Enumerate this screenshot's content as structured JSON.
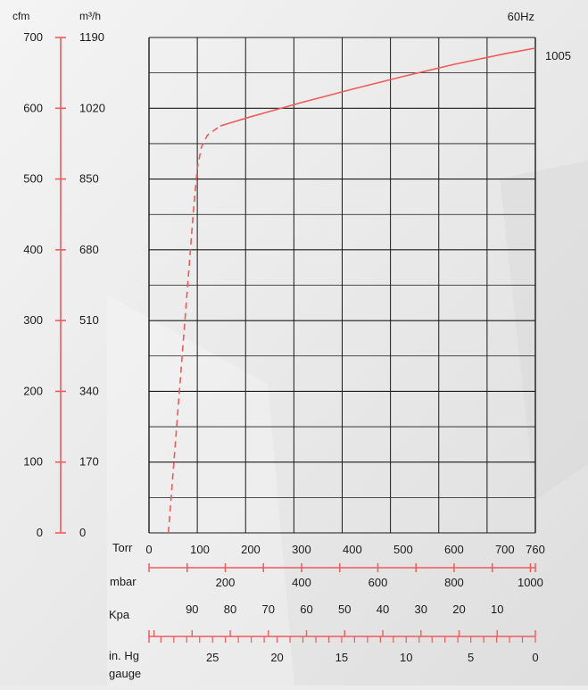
{
  "chart_data": {
    "type": "line",
    "frequency_label": "60Hz",
    "end_value_label": "1005",
    "colors": {
      "curve": "#f05a5a",
      "axis": "#f05a5a",
      "grid": "#1a1a1a",
      "text": "#1a1a1a"
    },
    "grid": true,
    "y_axes": [
      {
        "label": "cfm",
        "ticks": [
          0,
          100,
          200,
          300,
          400,
          500,
          600,
          700
        ],
        "range": [
          0,
          700
        ]
      },
      {
        "label": "m³/h",
        "ticks": [
          0,
          170,
          340,
          510,
          680,
          850,
          1020,
          1190
        ],
        "range": [
          0,
          1190
        ]
      }
    ],
    "x_axes": [
      {
        "label": "Torr",
        "ticks": [
          0,
          100,
          200,
          300,
          400,
          500,
          600,
          700,
          760
        ],
        "range": [
          0,
          760
        ]
      },
      {
        "label": "mbar",
        "ticks": [
          200,
          400,
          600,
          800,
          1000
        ],
        "range": [
          0,
          1013
        ]
      },
      {
        "label": "Kpa",
        "ticks": [
          90,
          80,
          70,
          60,
          50,
          40,
          30,
          20,
          10
        ]
      },
      {
        "label": "in. Hg gauge",
        "label_lines": [
          "in. Hg",
          "gauge"
        ],
        "ticks": [
          25,
          20,
          15,
          10,
          5,
          0
        ]
      }
    ],
    "series": [
      {
        "style": "dashed",
        "points": [
          [
            38,
            0
          ],
          [
            50,
            110
          ],
          [
            62,
            220
          ],
          [
            75,
            340
          ],
          [
            88,
            460
          ],
          [
            95,
            515
          ],
          [
            103,
            545
          ],
          [
            115,
            562
          ],
          [
            140,
            575
          ]
        ]
      },
      {
        "style": "solid",
        "points": [
          [
            140,
            575
          ],
          [
            200,
            588
          ],
          [
            300,
            608
          ],
          [
            400,
            627
          ],
          [
            500,
            645
          ],
          [
            600,
            662
          ],
          [
            700,
            677
          ],
          [
            760,
            685
          ]
        ]
      }
    ]
  }
}
